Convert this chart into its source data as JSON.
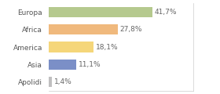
{
  "categories": [
    "Europa",
    "Africa",
    "America",
    "Asia",
    "Apolidi"
  ],
  "values": [
    41.7,
    27.8,
    18.1,
    11.1,
    1.4
  ],
  "labels": [
    "41,7%",
    "27,8%",
    "18,1%",
    "11,1%",
    "1,4%"
  ],
  "bar_colors": [
    "#b5c98e",
    "#f0b97d",
    "#f5d67a",
    "#7b8fc7",
    "#c0bfc0"
  ],
  "background_color": "#ffffff",
  "label_fontsize": 6.5,
  "category_fontsize": 6.5,
  "xlim": [
    0,
    58
  ],
  "bar_height": 0.6
}
